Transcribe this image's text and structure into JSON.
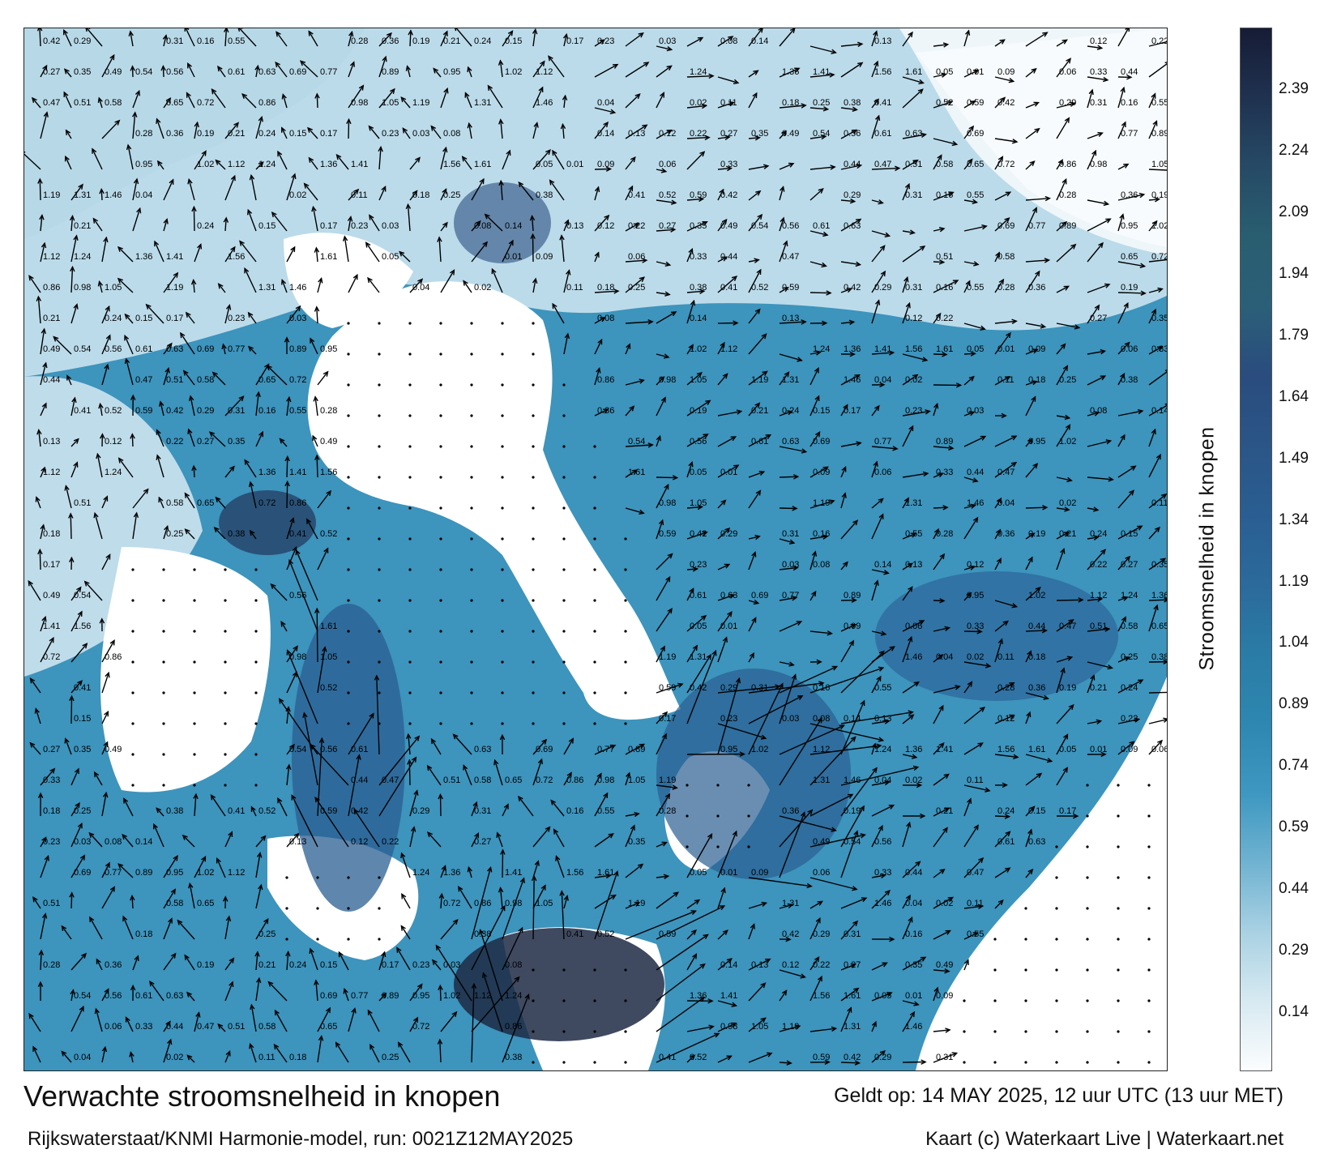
{
  "map": {
    "name": "North Sea current speed forecast",
    "colors": {
      "land": "#ffffff",
      "water_light": "#d9ebf3",
      "water_mid": "#3a8fb6",
      "water_dark": "#1d2a44",
      "arrow": "#000000"
    },
    "sample_values": [
      "0.42",
      "0.29",
      "0.31",
      "0.16",
      "0.55",
      "0.28",
      "0.36",
      "0.19",
      "0.21",
      "0.24",
      "0.15",
      "0.17",
      "0.23",
      "0.03",
      "0.08",
      "0.14",
      "0.13",
      "0.12",
      "0.22",
      "0.27",
      "0.35",
      "0.49",
      "0.54",
      "0.56",
      "0.61",
      "0.63",
      "0.69",
      "0.77",
      "0.89",
      "0.95",
      "1.02",
      "1.12",
      "1.24",
      "1.36",
      "1.41",
      "1.56",
      "1.61",
      "0.05",
      "0.01",
      "0.09",
      "0.06",
      "0.33",
      "0.44",
      "0.47",
      "0.51",
      "0.58",
      "0.65",
      "0.72",
      "0.86",
      "0.98",
      "1.05",
      "1.19",
      "1.31",
      "1.46",
      "0.04",
      "0.02",
      "0.11",
      "0.18",
      "0.25",
      "0.38",
      "0.41",
      "0.52",
      "0.59"
    ]
  },
  "legend": {
    "title": "Stroomsnelheid in knopen",
    "ticks": [
      "2.39",
      "2.24",
      "2.09",
      "1.94",
      "1.79",
      "1.64",
      "1.49",
      "1.34",
      "1.19",
      "1.04",
      "0.89",
      "0.74",
      "0.59",
      "0.44",
      "0.29",
      "0.14"
    ],
    "min": 0,
    "max": 2.54,
    "colors": [
      "#fbfdfe",
      "#d7e9f1",
      "#a9d1e3",
      "#6fb2d1",
      "#3d97c0",
      "#2d87b0",
      "#2a7ca6",
      "#2b6a9b",
      "#2a5e92",
      "#2b5587",
      "#2a4c7e",
      "#2b5f78",
      "#295e70",
      "#264a66",
      "#1f3250",
      "#161c36"
    ]
  },
  "header": {
    "title": "Verwachte stroomsnelheid in knopen",
    "subtitle": "Rijkswaterstaat/KNMI Harmonie-model, run: 0021Z12MAY2025",
    "valid": "Geldt op: 14 MAY 2025, 12 uur UTC (13 uur MET)",
    "credit": "Kaart (c) Waterkaart Live | Waterkaart.net"
  }
}
